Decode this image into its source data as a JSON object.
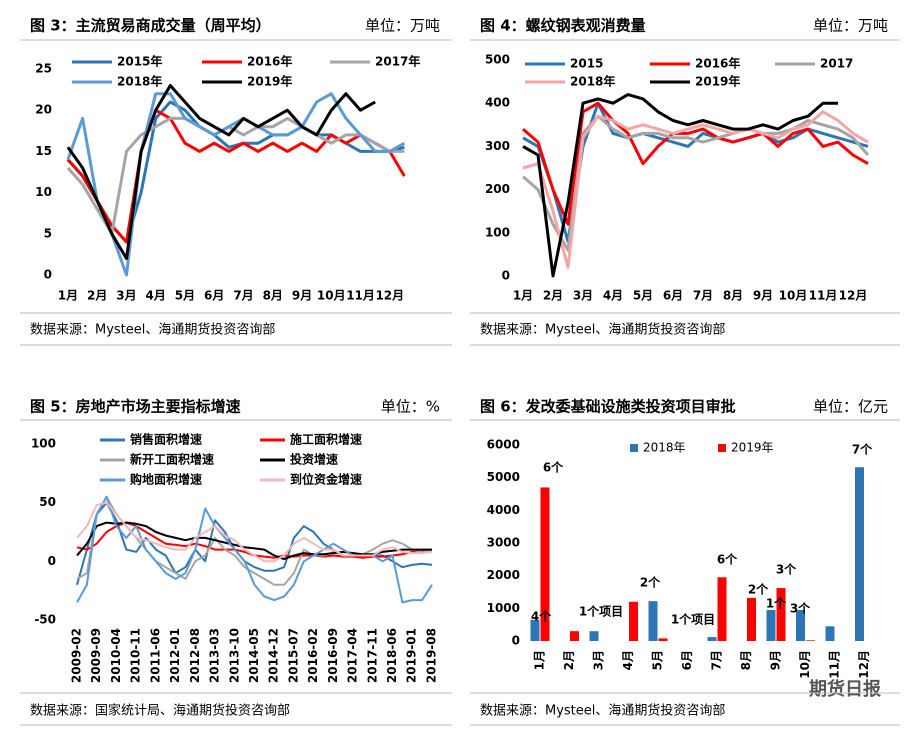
{
  "chart_data": [
    {
      "type": "line",
      "title": "图 3：主流贸易商成交量（周平均）",
      "unit": "单位：万吨",
      "source": "数据来源：Mysteel、海通期货投资咨询部",
      "x": [
        1,
        1.5,
        2,
        2.5,
        3,
        3.5,
        4,
        4.5,
        5,
        5.5,
        6,
        6.5,
        7,
        7.5,
        8,
        8.5,
        9,
        9.5,
        10,
        10.5,
        11,
        11.5,
        12,
        12.5
      ],
      "xlim": [
        0.9,
        13.1
      ],
      "xticks": [
        {
          "value": 1,
          "label": "1月"
        },
        {
          "value": 2,
          "label": "2月"
        },
        {
          "value": 3,
          "label": "3月"
        },
        {
          "value": 4,
          "label": "4月"
        },
        {
          "value": 5,
          "label": "5月"
        },
        {
          "value": 6,
          "label": "6月"
        },
        {
          "value": 7,
          "label": "7月"
        },
        {
          "value": 8,
          "label": "8月"
        },
        {
          "value": 9,
          "label": "9月"
        },
        {
          "value": 10,
          "label": "10月"
        },
        {
          "value": 11,
          "label": "11月"
        },
        {
          "value": 12,
          "label": "12月"
        }
      ],
      "ylim": [
        0,
        25
      ],
      "yticks": [
        0,
        5,
        10,
        15,
        20,
        25
      ],
      "series": [
        {
          "name": "2015年",
          "color": "#2e75b6",
          "values": [
            14,
            12,
            9,
            6,
            4,
            10,
            19,
            21,
            20,
            18,
            17,
            15.5,
            16,
            16,
            17,
            17,
            18,
            17,
            17,
            16,
            15,
            15,
            15,
            15.5
          ]
        },
        {
          "name": "2016年",
          "color": "#ff0000",
          "values": [
            14,
            12,
            9,
            6,
            4,
            15,
            20,
            19,
            16,
            15,
            16,
            15,
            16,
            15,
            16,
            15,
            16,
            15,
            17,
            16,
            17,
            16,
            15,
            12
          ]
        },
        {
          "name": "2017年",
          "color": "#a5a5a5",
          "values": [
            13,
            11,
            8,
            5,
            15,
            17,
            18,
            19,
            19,
            18,
            17,
            18,
            17,
            18,
            18,
            19,
            18,
            17,
            16,
            17,
            17,
            16,
            15,
            15
          ]
        },
        {
          "name": "2018年",
          "color": "#5b9bd5",
          "values": [
            14,
            19,
            9,
            5,
            0,
            15,
            22,
            22,
            19,
            18,
            17,
            18,
            19,
            18,
            17,
            17,
            18,
            21,
            22,
            19,
            17,
            15,
            15,
            16
          ]
        },
        {
          "name": "2019年",
          "color": "#000000",
          "values": [
            15.5,
            13,
            9,
            5,
            2,
            15,
            20,
            23,
            21,
            19,
            18,
            17,
            19,
            18,
            19,
            20,
            18,
            17,
            20,
            22,
            20,
            21,
            null,
            null
          ]
        }
      ]
    },
    {
      "type": "line",
      "title": "图 4：螺纹钢表观消费量",
      "unit": "单位：万吨",
      "source": "数据来源：Mysteel、海通期货投资咨询部",
      "x": [
        1,
        1.5,
        2,
        2.5,
        3,
        3.5,
        4,
        4.5,
        5,
        5.5,
        6,
        6.5,
        7,
        7.5,
        8,
        8.5,
        9,
        9.5,
        10,
        10.5,
        11,
        11.5,
        12,
        12.5
      ],
      "xlim": [
        0.9,
        13.1
      ],
      "xticks": [
        {
          "value": 1,
          "label": "1月"
        },
        {
          "value": 2,
          "label": "2月"
        },
        {
          "value": 3,
          "label": "3月"
        },
        {
          "value": 4,
          "label": "4月"
        },
        {
          "value": 5,
          "label": "5月"
        },
        {
          "value": 6,
          "label": "6月"
        },
        {
          "value": 7,
          "label": "7月"
        },
        {
          "value": 8,
          "label": "8月"
        },
        {
          "value": 9,
          "label": "9月"
        },
        {
          "value": 10,
          "label": "10月"
        },
        {
          "value": 11,
          "label": "11月"
        },
        {
          "value": 12,
          "label": "12月"
        }
      ],
      "ylim": [
        0,
        500
      ],
      "yticks": [
        0,
        100,
        200,
        300,
        400,
        500
      ],
      "series": [
        {
          "name": "2015",
          "color": "#2e75b6",
          "values": [
            320,
            300,
            200,
            80,
            300,
            400,
            330,
            320,
            330,
            320,
            310,
            300,
            330,
            320,
            310,
            320,
            330,
            310,
            320,
            340,
            330,
            320,
            310,
            300
          ]
        },
        {
          "name": "2016年",
          "color": "#ff0000",
          "values": [
            340,
            310,
            200,
            120,
            380,
            400,
            360,
            330,
            260,
            300,
            330,
            330,
            340,
            320,
            310,
            320,
            330,
            300,
            330,
            340,
            300,
            310,
            280,
            260
          ]
        },
        {
          "name": "2017",
          "color": "#a5a5a5",
          "values": [
            230,
            200,
            120,
            60,
            330,
            370,
            340,
            320,
            330,
            330,
            320,
            320,
            310,
            320,
            330,
            340,
            330,
            330,
            340,
            360,
            350,
            340,
            320,
            280
          ]
        },
        {
          "name": "2018年",
          "color": "#f4a6a6",
          "values": [
            250,
            260,
            150,
            20,
            320,
            370,
            360,
            340,
            350,
            340,
            330,
            340,
            350,
            340,
            330,
            340,
            330,
            320,
            340,
            350,
            380,
            360,
            330,
            310
          ]
        },
        {
          "name": "2019年",
          "color": "#000000",
          "values": [
            300,
            280,
            0,
            170,
            400,
            410,
            400,
            420,
            410,
            380,
            360,
            350,
            360,
            350,
            340,
            340,
            350,
            340,
            360,
            370,
            400,
            400,
            null,
            null
          ]
        }
      ]
    },
    {
      "type": "line",
      "title": "图 5：房地产市场主要指标增速",
      "unit": "单位：%",
      "source": "数据来源：国家统计局、海通期货投资咨询部",
      "categories": [
        "2009-02",
        null,
        "2009-09",
        null,
        "2010-04",
        null,
        "2010-11",
        null,
        "2011-06",
        null,
        "2012-01",
        null,
        "2012-08",
        null,
        "2013-03",
        null,
        "2013-10",
        null,
        "2014-05",
        null,
        "2014-12",
        null,
        "2015-07",
        null,
        "2016-02",
        null,
        "2016-09",
        null,
        "2017-04",
        null,
        "2017-11",
        null,
        "2018-06",
        null,
        "2019-01",
        null,
        "2019-08"
      ],
      "ylim": [
        -50,
        100
      ],
      "yticks": [
        -50,
        0,
        50,
        100
      ],
      "series": [
        {
          "name": "销售面积增速",
          "color": "#2e75b6",
          "values": [
            -20,
            10,
            40,
            50,
            35,
            10,
            8,
            20,
            10,
            5,
            -10,
            -5,
            10,
            0,
            35,
            25,
            10,
            0,
            -5,
            -8,
            -8,
            -5,
            20,
            30,
            25,
            15,
            10,
            5,
            5,
            3,
            5,
            5,
            0,
            -5,
            -3,
            -2,
            -3
          ]
        },
        {
          "name": "施工面积增速",
          "color": "#ff0000",
          "values": [
            12,
            10,
            15,
            25,
            30,
            33,
            30,
            25,
            20,
            15,
            14,
            13,
            15,
            13,
            10,
            10,
            10,
            8,
            5,
            4,
            3,
            5,
            4,
            5,
            5,
            4,
            5,
            4,
            4,
            3,
            4,
            4,
            5,
            6,
            8,
            9,
            9
          ]
        },
        {
          "name": "新开工面积增速",
          "color": "#a5a5a5",
          "values": [
            -15,
            -10,
            40,
            55,
            40,
            30,
            20,
            10,
            0,
            -5,
            -10,
            -15,
            0,
            5,
            20,
            10,
            5,
            -5,
            -10,
            -15,
            -20,
            -20,
            -10,
            10,
            5,
            5,
            8,
            5,
            5,
            6,
            10,
            15,
            18,
            15,
            10,
            8,
            9
          ]
        },
        {
          "name": "投资增速",
          "color": "#000000",
          "values": [
            5,
            15,
            30,
            33,
            32,
            33,
            32,
            30,
            25,
            22,
            20,
            18,
            20,
            20,
            18,
            16,
            14,
            12,
            11,
            10,
            5,
            2,
            5,
            7,
            6,
            6,
            7,
            8,
            7,
            6,
            6,
            8,
            9,
            10,
            10,
            10,
            10
          ]
        },
        {
          "name": "购地面积增速",
          "color": "#5b9bd5",
          "values": [
            -35,
            -20,
            40,
            55,
            30,
            20,
            30,
            10,
            0,
            -10,
            -15,
            -10,
            10,
            45,
            30,
            20,
            10,
            0,
            -20,
            -30,
            -33,
            -30,
            -20,
            0,
            5,
            10,
            15,
            10,
            5,
            5,
            5,
            0,
            5,
            -35,
            -33,
            -33,
            -20
          ]
        },
        {
          "name": "到位资金增速",
          "color": "#f4b8b8",
          "values": [
            20,
            30,
            48,
            50,
            40,
            30,
            20,
            18,
            15,
            12,
            10,
            10,
            20,
            25,
            30,
            22,
            18,
            10,
            5,
            0,
            0,
            5,
            15,
            20,
            15,
            10,
            10,
            5,
            5,
            5,
            5,
            10,
            12,
            8,
            7,
            7,
            8
          ]
        }
      ]
    },
    {
      "type": "bar",
      "title": "图 6：发改委基础设施类投资项目审批",
      "unit": "单位：亿元",
      "source": "数据来源：Mysteel、海通期货投资咨询部",
      "categories": [
        "1月",
        "2月",
        "3月",
        "4月",
        "5月",
        "6月",
        "7月",
        "8月",
        "9月",
        "10月",
        "11月",
        "12月"
      ],
      "ylim": [
        0,
        6000
      ],
      "yticks": [
        0,
        1000,
        2000,
        3000,
        4000,
        5000,
        6000
      ],
      "series": [
        {
          "name": "2018年",
          "color": "#2e75b6",
          "values": [
            650,
            null,
            300,
            null,
            1220,
            null,
            120,
            null,
            950,
            950,
            450,
            5320
          ]
        },
        {
          "name": "2019年",
          "color": "#ff0000",
          "values": [
            4700,
            300,
            null,
            1200,
            80,
            null,
            1950,
            1320,
            1620,
            20,
            null,
            null
          ]
        }
      ],
      "annotations": [
        "4个",
        "6个",
        "1个项目",
        "2个",
        "1个项目",
        "6个",
        "2个",
        "1个",
        "3个",
        "3个",
        "7个"
      ]
    }
  ],
  "watermark": "期货日报"
}
